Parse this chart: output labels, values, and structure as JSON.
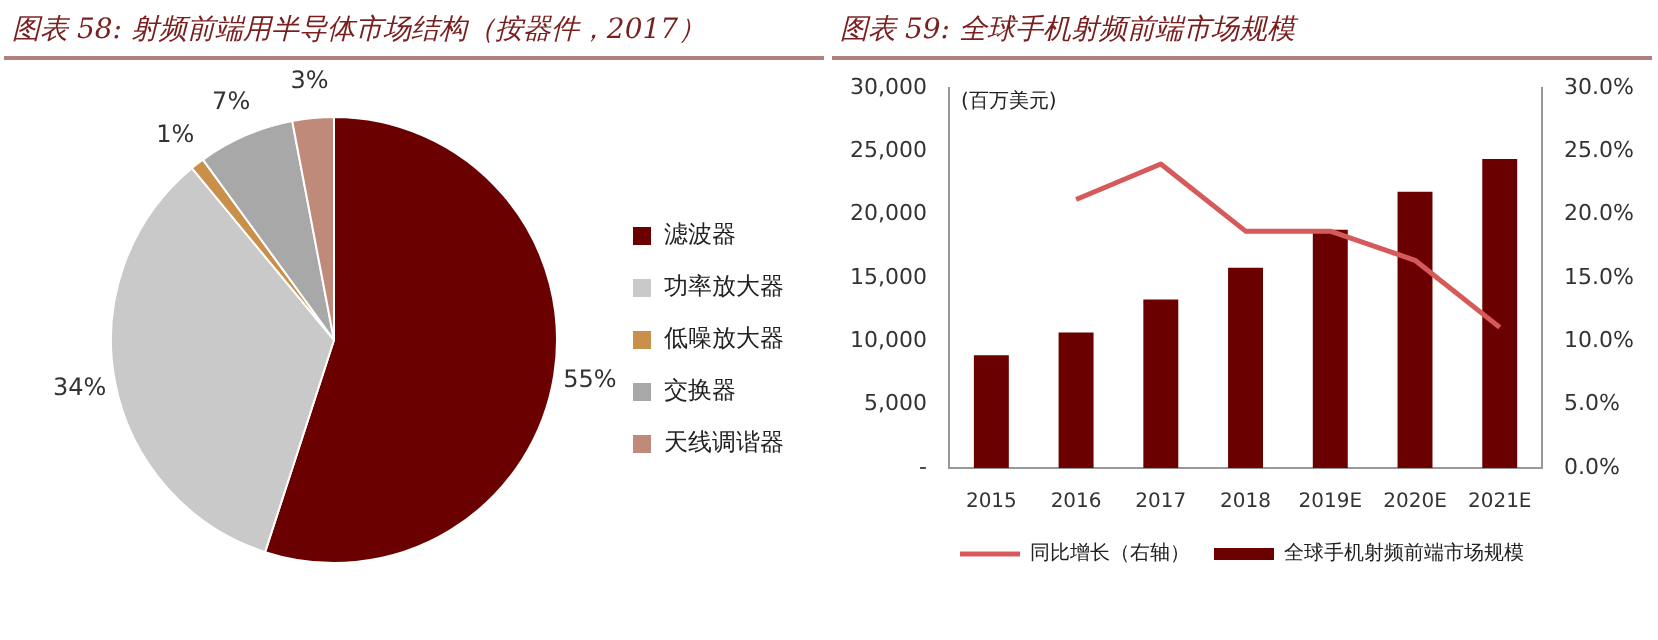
{
  "chart_data": [
    {
      "type": "pie",
      "title": "图表 58: 射频前端用半导体市场结构（按器件，2017）",
      "categories": [
        "滤波器",
        "功率放大器",
        "低噪放大器",
        "交换器",
        "天线调谐器"
      ],
      "values": [
        55,
        34,
        1,
        7,
        3
      ],
      "value_labels": [
        "55%",
        "34%",
        "1%",
        "7%",
        "3%"
      ],
      "colors": [
        "#6b0000",
        "#c9c9c9",
        "#c8904a",
        "#a8a8a8",
        "#c08a7a"
      ],
      "legend": "right"
    },
    {
      "type": "bar",
      "title": "图表 59: 全球手机射频前端市场规模",
      "ylabel": "(百万美元)",
      "categories": [
        "2015",
        "2016",
        "2017",
        "2018",
        "2019E",
        "2020E",
        "2021E"
      ],
      "series": [
        {
          "name": "全球手机射频前端市场规模",
          "type": "bar",
          "color": "#6b0000",
          "values": [
            8900,
            10700,
            13300,
            15800,
            18800,
            21800,
            24400
          ]
        },
        {
          "name": "同比增长（右轴）",
          "type": "line",
          "axis": "y2",
          "color": "#d65a5a",
          "values": [
            null,
            21.2,
            24.0,
            18.7,
            18.7,
            16.4,
            11.1
          ]
        }
      ],
      "ylim": [
        0,
        30000
      ],
      "yticks": [
        {
          "value": 0,
          "label": "-"
        },
        {
          "value": 5000,
          "label": "5,000"
        },
        {
          "value": 10000,
          "label": "10,000"
        },
        {
          "value": 15000,
          "label": "15,000"
        },
        {
          "value": 20000,
          "label": "20,000"
        },
        {
          "value": 25000,
          "label": "25,000"
        },
        {
          "value": 30000,
          "label": "30,000"
        }
      ],
      "y2lim": [
        0,
        30
      ],
      "y2ticks": [
        {
          "value": 0,
          "label": "0.0%"
        },
        {
          "value": 5,
          "label": "5.0%"
        },
        {
          "value": 10,
          "label": "10.0%"
        },
        {
          "value": 15,
          "label": "15.0%"
        },
        {
          "value": 20,
          "label": "20.0%"
        },
        {
          "value": 25,
          "label": "25.0%"
        },
        {
          "value": 30,
          "label": "30.0%"
        }
      ],
      "grid": false,
      "legend": "bottom"
    }
  ]
}
